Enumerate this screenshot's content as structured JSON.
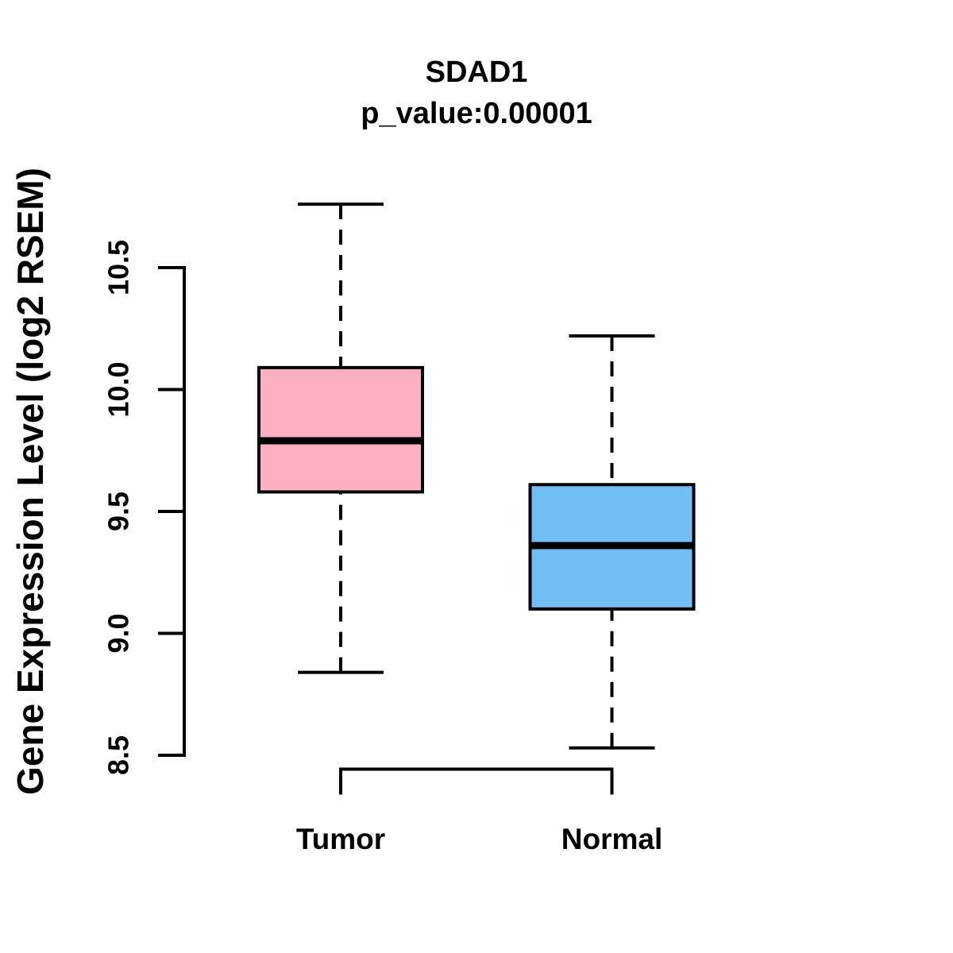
{
  "figure": {
    "title": "SDAD1",
    "subtitle": "p_value:0.00001",
    "ylabel": "Gene Expression Level (log2 RSEM)"
  },
  "chart_data": {
    "type": "boxplot",
    "title": "SDAD1",
    "subtitle": "p_value:0.00001",
    "ylabel": "Gene Expression Level (log2 RSEM)",
    "xlabel": "",
    "categories": [
      "Tumor",
      "Normal"
    ],
    "yticks": [
      8.5,
      9.0,
      9.5,
      10.0,
      10.5
    ],
    "ylim": [
      8.35,
      10.9
    ],
    "grid": false,
    "legend": "none",
    "series": [
      {
        "name": "Tumor",
        "color": "#FCAFC1",
        "whisker_low": 8.84,
        "q1": 9.58,
        "median": 9.79,
        "q3": 10.09,
        "whisker_high": 10.76
      },
      {
        "name": "Normal",
        "color": "#74BEF7",
        "whisker_low": 8.53,
        "q1": 9.1,
        "median": 9.36,
        "q3": 9.61,
        "whisker_high": 10.22
      }
    ],
    "style": {
      "box_border_color": "#000000",
      "median_color": "#000000",
      "whisker_color": "#000000",
      "whisker_linestyle": "dashed",
      "background": "#FFFFFF"
    }
  }
}
